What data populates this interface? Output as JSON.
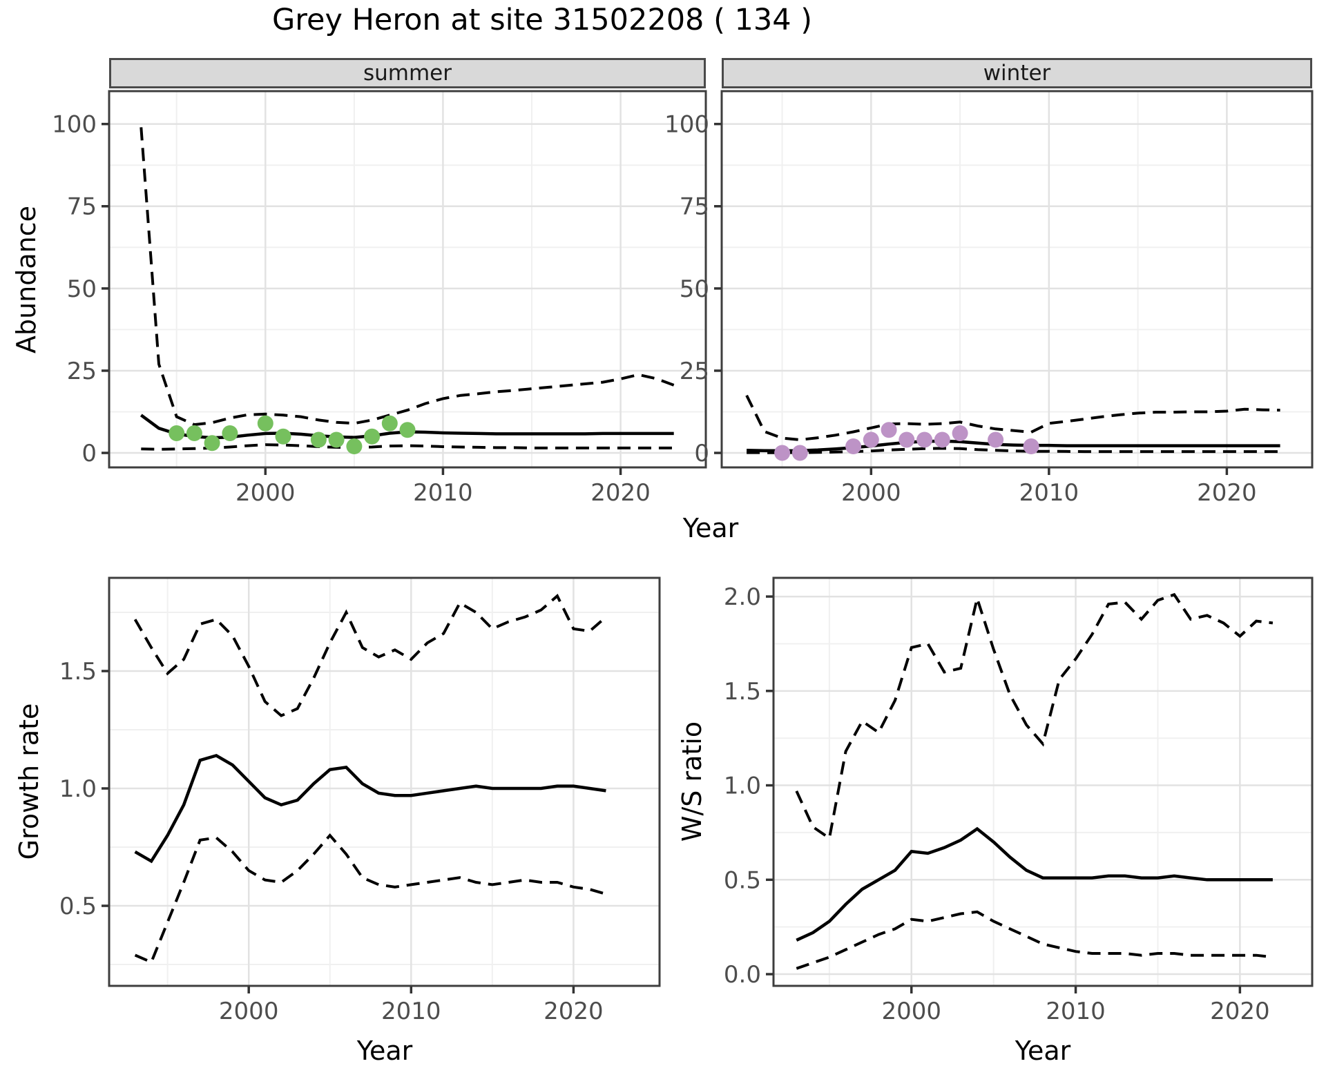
{
  "title": "Grey Heron at site 31502208 ( 134 )",
  "colors": {
    "summer_point": "#76c05e",
    "winter_point": "#bd93c6",
    "line": "#000000",
    "strip_bg": "#d9d9d9",
    "panel_border": "#3e3e3e",
    "grid_major": "#e2e2e2",
    "grid_minor": "#f0f0f0",
    "tick_text": "#4d4d4d"
  },
  "chart_data": [
    {
      "id": "abundance-summer",
      "type": "line",
      "facet": "summer",
      "xlabel": "Year",
      "ylabel": "Abundance",
      "xlim": [
        1991.2,
        2024.8
      ],
      "ylim": [
        -4.4,
        110
      ],
      "xticks": [
        2000,
        2010,
        2020
      ],
      "xticklabels": [
        "2000",
        "2010",
        "2020"
      ],
      "xminor": [
        1995,
        2005,
        2015
      ],
      "yticks": [
        0,
        25,
        50,
        75,
        100
      ],
      "yticklabels": [
        "0",
        "25",
        "50",
        "75",
        "100"
      ],
      "yminor": [
        12.5,
        37.5,
        62.5,
        87.5
      ],
      "series": [
        {
          "name": "fitted",
          "style": "solid",
          "x": [
            1993,
            1994,
            1995,
            1996,
            1997,
            1998,
            1999,
            2000,
            2001,
            2002,
            2003,
            2004,
            2005,
            2006,
            2007,
            2008,
            2009,
            2010,
            2011,
            2012,
            2013,
            2014,
            2015,
            2016,
            2017,
            2018,
            2019,
            2020,
            2021,
            2022,
            2023
          ],
          "y": [
            11.5,
            7.5,
            5.8,
            5.0,
            4.6,
            4.8,
            5.4,
            5.9,
            6.0,
            5.7,
            5.2,
            4.9,
            4.7,
            5.2,
            6.0,
            6.4,
            6.3,
            6.1,
            6.0,
            5.9,
            5.8,
            5.8,
            5.8,
            5.8,
            5.8,
            5.8,
            5.9,
            5.9,
            5.9,
            5.9,
            5.9
          ]
        },
        {
          "name": "upper-ci",
          "style": "dashed",
          "x": [
            1993,
            1994,
            1995,
            1996,
            1997,
            1998,
            1999,
            2000,
            2001,
            2002,
            2003,
            2004,
            2005,
            2006,
            2007,
            2008,
            2009,
            2010,
            2011,
            2012,
            2013,
            2014,
            2015,
            2016,
            2017,
            2018,
            2019,
            2020,
            2021,
            2022,
            2023
          ],
          "y": [
            99,
            27,
            11,
            8.6,
            9.2,
            10.6,
            11.6,
            11.8,
            11.5,
            11.0,
            10.0,
            9.3,
            9.0,
            10.0,
            11.5,
            13.0,
            15.0,
            16.5,
            17.5,
            18.0,
            18.6,
            19.0,
            19.5,
            20.0,
            20.5,
            21.0,
            21.5,
            22.5,
            23.8,
            22.6,
            20.6
          ]
        },
        {
          "name": "lower-ci",
          "style": "dashed",
          "x": [
            1993,
            1994,
            1995,
            1996,
            1997,
            1998,
            1999,
            2000,
            2001,
            2002,
            2003,
            2004,
            2005,
            2006,
            2007,
            2008,
            2009,
            2010,
            2011,
            2012,
            2013,
            2014,
            2015,
            2016,
            2017,
            2018,
            2019,
            2020,
            2021,
            2022,
            2023
          ],
          "y": [
            1.2,
            1.1,
            1.2,
            1.3,
            1.5,
            1.8,
            2.2,
            2.5,
            2.4,
            2.2,
            1.9,
            1.7,
            1.6,
            1.8,
            2.1,
            2.2,
            2.1,
            1.9,
            1.8,
            1.7,
            1.6,
            1.6,
            1.5,
            1.5,
            1.5,
            1.5,
            1.5,
            1.5,
            1.5,
            1.5,
            1.5
          ]
        }
      ],
      "points": {
        "name": "observed",
        "color": "#76c05e",
        "x": [
          1995,
          1996,
          1997,
          1998,
          2000,
          2001,
          2003,
          2004,
          2005,
          2006,
          2007,
          2008
        ],
        "y": [
          6,
          6,
          3,
          6,
          9,
          5,
          4,
          4,
          2,
          5,
          9,
          7
        ]
      }
    },
    {
      "id": "abundance-winter",
      "type": "line",
      "facet": "winter",
      "xlabel": "Year",
      "ylabel": "Abundance",
      "xlim": [
        1991.6,
        2024.8
      ],
      "ylim": [
        -4.4,
        110
      ],
      "xticks": [
        2000,
        2010,
        2020
      ],
      "xticklabels": [
        "2000",
        "2010",
        "2020"
      ],
      "xminor": [
        1995,
        2005,
        2015
      ],
      "yticks": [
        0,
        25,
        50,
        75,
        100
      ],
      "yticklabels": [
        "0",
        "25",
        "50",
        "75",
        "100"
      ],
      "yminor": [
        12.5,
        37.5,
        62.5,
        87.5
      ],
      "series": [
        {
          "name": "fitted",
          "style": "solid",
          "x": [
            1993,
            1994,
            1995,
            1996,
            1997,
            1998,
            1999,
            2000,
            2001,
            2002,
            2003,
            2004,
            2005,
            2006,
            2007,
            2008,
            2009,
            2010,
            2011,
            2012,
            2013,
            2014,
            2015,
            2016,
            2017,
            2018,
            2019,
            2020,
            2021,
            2022,
            2023
          ],
          "y": [
            0.8,
            0.7,
            0.65,
            0.7,
            0.9,
            1.2,
            1.6,
            2.1,
            2.7,
            3.2,
            3.5,
            3.6,
            3.4,
            3.0,
            2.6,
            2.4,
            2.3,
            2.3,
            2.2,
            2.2,
            2.2,
            2.2,
            2.2,
            2.2,
            2.2,
            2.2,
            2.2,
            2.2,
            2.2,
            2.2,
            2.2
          ]
        },
        {
          "name": "upper-ci",
          "style": "dashed",
          "x": [
            1993,
            1994,
            1995,
            1996,
            1997,
            1998,
            1999,
            2000,
            2001,
            2002,
            2003,
            2004,
            2005,
            2006,
            2007,
            2008,
            2009,
            2010,
            2011,
            2012,
            2013,
            2014,
            2015,
            2016,
            2017,
            2018,
            2019,
            2020,
            2021,
            2022,
            2023
          ],
          "y": [
            17.5,
            6.5,
            4.5,
            4.0,
            4.6,
            5.4,
            6.4,
            7.6,
            8.8,
            8.9,
            8.7,
            8.9,
            9.4,
            8.2,
            7.3,
            6.8,
            6.3,
            9.0,
            9.6,
            10.3,
            11.0,
            11.6,
            12.1,
            12.4,
            12.4,
            12.5,
            12.5,
            12.7,
            13.3,
            13.1,
            13.0
          ]
        },
        {
          "name": "lower-ci",
          "style": "dashed",
          "x": [
            1993,
            1994,
            1995,
            1996,
            1997,
            1998,
            1999,
            2000,
            2001,
            2002,
            2003,
            2004,
            2005,
            2006,
            2007,
            2008,
            2009,
            2010,
            2011,
            2012,
            2013,
            2014,
            2015,
            2016,
            2017,
            2018,
            2019,
            2020,
            2021,
            2022,
            2023
          ],
          "y": [
            0.1,
            0.08,
            0.08,
            0.1,
            0.15,
            0.25,
            0.4,
            0.6,
            0.9,
            1.1,
            1.3,
            1.4,
            1.3,
            1.0,
            0.8,
            0.6,
            0.5,
            0.5,
            0.45,
            0.4,
            0.4,
            0.4,
            0.4,
            0.4,
            0.4,
            0.4,
            0.4,
            0.4,
            0.4,
            0.4,
            0.4
          ]
        }
      ],
      "points": {
        "name": "observed",
        "color": "#bd93c6",
        "x": [
          1995,
          1996,
          1999,
          2000,
          2001,
          2002,
          2003,
          2004,
          2005,
          2007,
          2009
        ],
        "y": [
          0,
          0,
          2,
          4,
          7,
          4,
          4,
          4,
          6,
          4,
          2
        ]
      }
    },
    {
      "id": "growth-rate",
      "type": "line",
      "facet": "",
      "xlabel": "Year",
      "ylabel": "Growth rate",
      "xlim": [
        1991.4,
        2025.3
      ],
      "ylim": [
        0.159,
        1.897
      ],
      "xticks": [
        2000,
        2010,
        2020
      ],
      "xticklabels": [
        "2000",
        "2010",
        "2020"
      ],
      "xminor": [
        1995,
        2005,
        2015
      ],
      "yticks": [
        0.5,
        1.0,
        1.5
      ],
      "yticklabels": [
        "0.5",
        "1.0",
        "1.5"
      ],
      "yminor": [
        0.25,
        0.75,
        1.25,
        1.75
      ],
      "series": [
        {
          "name": "fitted",
          "style": "solid",
          "x": [
            1993,
            1994,
            1995,
            1996,
            1997,
            1998,
            1999,
            2000,
            2001,
            2002,
            2003,
            2004,
            2005,
            2006,
            2007,
            2008,
            2009,
            2010,
            2011,
            2012,
            2013,
            2014,
            2015,
            2016,
            2017,
            2018,
            2019,
            2020,
            2021,
            2022
          ],
          "y": [
            0.73,
            0.69,
            0.8,
            0.93,
            1.12,
            1.14,
            1.1,
            1.03,
            0.96,
            0.93,
            0.95,
            1.02,
            1.08,
            1.09,
            1.02,
            0.98,
            0.97,
            0.97,
            0.98,
            0.99,
            1.0,
            1.01,
            1.0,
            1.0,
            1.0,
            1.0,
            1.01,
            1.01,
            1.0,
            0.99
          ]
        },
        {
          "name": "upper-ci",
          "style": "dashed",
          "x": [
            1993,
            1994,
            1995,
            1996,
            1997,
            1998,
            1999,
            2000,
            2001,
            2002,
            2003,
            2004,
            2005,
            2006,
            2007,
            2008,
            2009,
            2010,
            2011,
            2012,
            2013,
            2014,
            2015,
            2016,
            2017,
            2018,
            2019,
            2020,
            2021,
            2022
          ],
          "y": [
            1.72,
            1.6,
            1.49,
            1.55,
            1.7,
            1.72,
            1.65,
            1.52,
            1.37,
            1.31,
            1.34,
            1.47,
            1.62,
            1.75,
            1.6,
            1.56,
            1.59,
            1.55,
            1.62,
            1.66,
            1.79,
            1.75,
            1.68,
            1.71,
            1.73,
            1.76,
            1.82,
            1.68,
            1.67,
            1.73
          ]
        },
        {
          "name": "lower-ci",
          "style": "dashed",
          "x": [
            1993,
            1994,
            1995,
            1996,
            1997,
            1998,
            1999,
            2000,
            2001,
            2002,
            2003,
            2004,
            2005,
            2006,
            2007,
            2008,
            2009,
            2010,
            2011,
            2012,
            2013,
            2014,
            2015,
            2016,
            2017,
            2018,
            2019,
            2020,
            2021,
            2022
          ],
          "y": [
            0.29,
            0.26,
            0.43,
            0.6,
            0.78,
            0.79,
            0.73,
            0.65,
            0.61,
            0.6,
            0.65,
            0.72,
            0.8,
            0.72,
            0.62,
            0.59,
            0.58,
            0.59,
            0.6,
            0.61,
            0.62,
            0.6,
            0.59,
            0.6,
            0.61,
            0.6,
            0.6,
            0.58,
            0.57,
            0.55
          ]
        }
      ]
    },
    {
      "id": "ws-ratio",
      "type": "line",
      "facet": "",
      "xlabel": "Year",
      "ylabel": "W/S ratio",
      "xlim": [
        1991.6,
        2024.4
      ],
      "ylim": [
        -0.062,
        2.099
      ],
      "xticks": [
        2000,
        2010,
        2020
      ],
      "xticklabels": [
        "2000",
        "2010",
        "2020"
      ],
      "xminor": [
        1995,
        2005,
        2015
      ],
      "yticks": [
        0.0,
        0.5,
        1.0,
        1.5,
        2.0
      ],
      "yticklabels": [
        "0.0",
        "0.5",
        "1.0",
        "1.5",
        "2.0"
      ],
      "yminor": [
        0.25,
        0.75,
        1.25,
        1.75
      ],
      "series": [
        {
          "name": "fitted",
          "style": "solid",
          "x": [
            1993,
            1994,
            1995,
            1996,
            1997,
            1998,
            1999,
            2000,
            2001,
            2002,
            2003,
            2004,
            2005,
            2006,
            2007,
            2008,
            2009,
            2010,
            2011,
            2012,
            2013,
            2014,
            2015,
            2016,
            2017,
            2018,
            2019,
            2020,
            2021,
            2022
          ],
          "y": [
            0.18,
            0.22,
            0.28,
            0.37,
            0.45,
            0.5,
            0.55,
            0.65,
            0.64,
            0.67,
            0.71,
            0.77,
            0.7,
            0.62,
            0.55,
            0.51,
            0.51,
            0.51,
            0.51,
            0.52,
            0.52,
            0.51,
            0.51,
            0.52,
            0.51,
            0.5,
            0.5,
            0.5,
            0.5,
            0.5
          ]
        },
        {
          "name": "upper-ci",
          "style": "dashed",
          "x": [
            1993,
            1994,
            1995,
            1996,
            1997,
            1998,
            1999,
            2000,
            2001,
            2002,
            2003,
            2004,
            2005,
            2006,
            2007,
            2008,
            2009,
            2010,
            2011,
            2012,
            2013,
            2014,
            2015,
            2016,
            2017,
            2018,
            2019,
            2020,
            2021,
            2022
          ],
          "y": [
            0.97,
            0.78,
            0.72,
            1.18,
            1.34,
            1.28,
            1.45,
            1.73,
            1.75,
            1.6,
            1.62,
            1.99,
            1.72,
            1.48,
            1.32,
            1.22,
            1.56,
            1.67,
            1.8,
            1.96,
            1.97,
            1.88,
            1.98,
            2.01,
            1.88,
            1.9,
            1.86,
            1.79,
            1.87,
            1.86
          ]
        },
        {
          "name": "lower-ci",
          "style": "dashed",
          "x": [
            1993,
            1994,
            1995,
            1996,
            1997,
            1998,
            1999,
            2000,
            2001,
            2002,
            2003,
            2004,
            2005,
            2006,
            2007,
            2008,
            2009,
            2010,
            2011,
            2012,
            2013,
            2014,
            2015,
            2016,
            2017,
            2018,
            2019,
            2020,
            2021,
            2022
          ],
          "y": [
            0.03,
            0.06,
            0.09,
            0.13,
            0.17,
            0.21,
            0.24,
            0.29,
            0.28,
            0.3,
            0.32,
            0.33,
            0.28,
            0.24,
            0.2,
            0.16,
            0.14,
            0.12,
            0.11,
            0.11,
            0.11,
            0.1,
            0.11,
            0.11,
            0.1,
            0.1,
            0.1,
            0.1,
            0.1,
            0.09
          ]
        }
      ]
    }
  ]
}
